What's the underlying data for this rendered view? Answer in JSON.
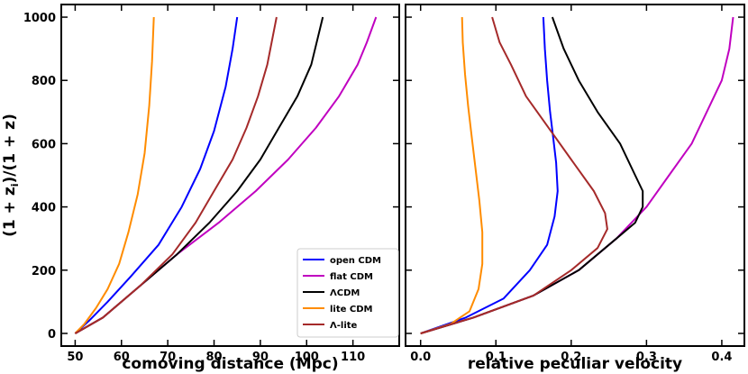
{
  "chart_data": [
    {
      "type": "line",
      "panel": "left",
      "xlabel": "comoving distance (Mpc)",
      "ylabel": "(1 + z_i)/(1 + z)",
      "xlim": [
        47,
        120
      ],
      "ylim": [
        -40,
        1040
      ],
      "xticks": [
        50,
        60,
        70,
        80,
        90,
        100,
        110
      ],
      "yticks": [
        0,
        200,
        400,
        600,
        800,
        1000
      ],
      "legend": {
        "position": "lower-right"
      },
      "series": [
        {
          "name": "open CDM",
          "color": "#0000ff",
          "points": [
            [
              50,
              0
            ],
            [
              53,
              40
            ],
            [
              57,
              100
            ],
            [
              62,
              180
            ],
            [
              68,
              280
            ],
            [
              73,
              400
            ],
            [
              77,
              520
            ],
            [
              80,
              640
            ],
            [
              82.5,
              780
            ],
            [
              84,
              900
            ],
            [
              85,
              1000
            ]
          ]
        },
        {
          "name": "flat CDM",
          "color": "#c000c0",
          "points": [
            [
              50,
              0
            ],
            [
              56,
              50
            ],
            [
              64,
              150
            ],
            [
              72,
              250
            ],
            [
              81,
              350
            ],
            [
              89,
              450
            ],
            [
              96,
              550
            ],
            [
              102,
              650
            ],
            [
              107,
              750
            ],
            [
              111,
              850
            ],
            [
              113,
              920
            ],
            [
              115,
              1000
            ]
          ]
        },
        {
          "name": "ΛCDM",
          "color": "#000000",
          "points": [
            [
              50,
              0
            ],
            [
              56,
              50
            ],
            [
              64,
              150
            ],
            [
              72,
              250
            ],
            [
              79,
              350
            ],
            [
              85,
              450
            ],
            [
              90,
              550
            ],
            [
              94,
              650
            ],
            [
              98,
              750
            ],
            [
              101,
              850
            ],
            [
              103.5,
              1000
            ]
          ]
        },
        {
          "name": "lite CDM",
          "color": "#ff8c00",
          "points": [
            [
              50,
              0
            ],
            [
              52,
              30
            ],
            [
              54.5,
              80
            ],
            [
              57,
              140
            ],
            [
              59.5,
              220
            ],
            [
              61.5,
              320
            ],
            [
              63.5,
              440
            ],
            [
              65,
              570
            ],
            [
              66,
              720
            ],
            [
              66.6,
              860
            ],
            [
              67,
              1000
            ]
          ]
        },
        {
          "name": "Λ-lite",
          "color": "#a52a2a",
          "points": [
            [
              50,
              0
            ],
            [
              56,
              50
            ],
            [
              64,
              150
            ],
            [
              71,
              250
            ],
            [
              76,
              350
            ],
            [
              80,
              450
            ],
            [
              84,
              550
            ],
            [
              87,
              650
            ],
            [
              89.5,
              750
            ],
            [
              91.5,
              850
            ],
            [
              93.5,
              1000
            ]
          ]
        }
      ]
    },
    {
      "type": "line",
      "panel": "right",
      "xlabel": "relative peculiar velocity",
      "ylabel": "",
      "xlim": [
        -0.02,
        0.43
      ],
      "ylim": [
        -40,
        1040
      ],
      "xticks": [
        0.0,
        0.1,
        0.2,
        0.3,
        0.4
      ],
      "yticks": [
        0,
        200,
        400,
        600,
        800,
        1000
      ],
      "series": [
        {
          "name": "open CDM",
          "color": "#0000ff",
          "points": [
            [
              0,
              0
            ],
            [
              0.06,
              50
            ],
            [
              0.11,
              110
            ],
            [
              0.145,
              200
            ],
            [
              0.168,
              280
            ],
            [
              0.178,
              370
            ],
            [
              0.182,
              450
            ],
            [
              0.18,
              540
            ],
            [
              0.176,
              620
            ],
            [
              0.172,
              700
            ],
            [
              0.168,
              800
            ],
            [
              0.165,
              900
            ],
            [
              0.163,
              1000
            ]
          ]
        },
        {
          "name": "flat CDM",
          "color": "#c000c0",
          "points": [
            [
              0,
              0
            ],
            [
              0.07,
              50
            ],
            [
              0.15,
              120
            ],
            [
              0.21,
              200
            ],
            [
              0.26,
              300
            ],
            [
              0.3,
              400
            ],
            [
              0.33,
              500
            ],
            [
              0.36,
              600
            ],
            [
              0.38,
              700
            ],
            [
              0.4,
              800
            ],
            [
              0.41,
              900
            ],
            [
              0.415,
              1000
            ]
          ]
        },
        {
          "name": "ΛCDM",
          "color": "#000000",
          "points": [
            [
              0,
              0
            ],
            [
              0.07,
              50
            ],
            [
              0.15,
              120
            ],
            [
              0.21,
              200
            ],
            [
              0.26,
              300
            ],
            [
              0.285,
              350
            ],
            [
              0.295,
              400
            ],
            [
              0.295,
              450
            ],
            [
              0.285,
              500
            ],
            [
              0.265,
              600
            ],
            [
              0.235,
              700
            ],
            [
              0.21,
              800
            ],
            [
              0.19,
              900
            ],
            [
              0.175,
              1000
            ]
          ]
        },
        {
          "name": "lite CDM",
          "color": "#ff8c00",
          "points": [
            [
              0,
              0
            ],
            [
              0.04,
              30
            ],
            [
              0.065,
              70
            ],
            [
              0.077,
              140
            ],
            [
              0.082,
              220
            ],
            [
              0.082,
              320
            ],
            [
              0.078,
              420
            ],
            [
              0.073,
              520
            ],
            [
              0.068,
              620
            ],
            [
              0.063,
              720
            ],
            [
              0.059,
              820
            ],
            [
              0.056,
              920
            ],
            [
              0.055,
              1000
            ]
          ]
        },
        {
          "name": "Λ-lite",
          "color": "#a52a2a",
          "points": [
            [
              0,
              0
            ],
            [
              0.07,
              50
            ],
            [
              0.15,
              120
            ],
            [
              0.2,
              200
            ],
            [
              0.235,
              270
            ],
            [
              0.248,
              330
            ],
            [
              0.245,
              380
            ],
            [
              0.23,
              450
            ],
            [
              0.2,
              550
            ],
            [
              0.17,
              650
            ],
            [
              0.14,
              750
            ],
            [
              0.12,
              850
            ],
            [
              0.105,
              920
            ],
            [
              0.095,
              1000
            ]
          ]
        }
      ]
    }
  ]
}
